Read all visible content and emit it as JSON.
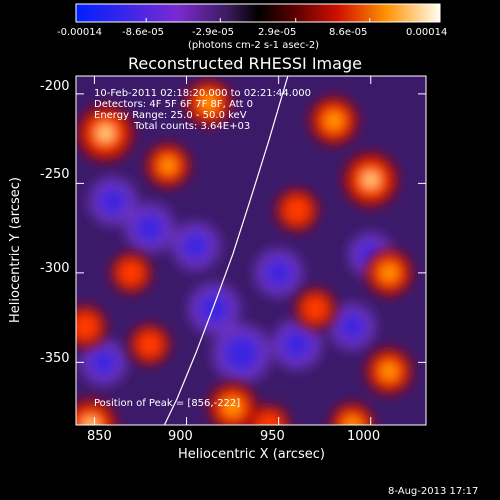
{
  "chart_data": {
    "type": "heatmap",
    "title": "Reconstructed RHESSI Image",
    "xlabel": "Heliocentric X (arcsec)",
    "ylabel": "Heliocentric Y (arcsec)",
    "xlim": [
      840,
      1030
    ],
    "ylim": [
      -385,
      -190
    ],
    "x_ticks": [
      "850",
      "900",
      "950",
      "1000"
    ],
    "y_ticks": [
      "-200",
      "-250",
      "-300",
      "-350"
    ],
    "colorbar": {
      "label": "(photons cm-2 s-1 asec-2)",
      "range": [
        -0.00014,
        0.00014
      ],
      "ticks": [
        "-0.00014",
        "-8.6e-05",
        "-2.9e-05",
        "2.9e-05",
        "8.6e-05",
        "0.00014"
      ]
    },
    "annotations": {
      "time_range": "10-Feb-2011 02:18:20.000 to 02:21:44.000",
      "detectors": "Detectors: 4F 5F 6F 7F 8F, Att 0",
      "energy_range": "Energy Range: 25.0 - 50.0 keV",
      "counts": "Total counts: 3.64E+03",
      "peak": "Position of Peak = [856,-222]"
    },
    "limb_curve": {
      "x": [
        888,
        895,
        905,
        915,
        925,
        935,
        945,
        955
      ],
      "y": [
        -385,
        -370,
        -345,
        -318,
        -290,
        -258,
        -225,
        -190
      ]
    },
    "bright_sources": [
      {
        "x": 856,
        "y": -222,
        "value": 0.00014
      },
      {
        "x": 1000,
        "y": -248,
        "value": 0.00013
      },
      {
        "x": 980,
        "y": -215,
        "value": 0.0001
      },
      {
        "x": 848,
        "y": -385,
        "value": 0.00012
      },
      {
        "x": 925,
        "y": -375,
        "value": 0.0001
      },
      {
        "x": 1010,
        "y": -300,
        "value": 9e-05
      },
      {
        "x": 912,
        "y": -205,
        "value": 9e-05
      },
      {
        "x": 890,
        "y": -240,
        "value": 8e-05
      },
      {
        "x": 1010,
        "y": -355,
        "value": 9e-05
      },
      {
        "x": 870,
        "y": -300,
        "value": 6e-05
      },
      {
        "x": 960,
        "y": -265,
        "value": 7e-05
      },
      {
        "x": 970,
        "y": -320,
        "value": 6e-05
      },
      {
        "x": 880,
        "y": -340,
        "value": 6e-05
      },
      {
        "x": 845,
        "y": -330,
        "value": 7e-05
      },
      {
        "x": 990,
        "y": -385,
        "value": 8e-05
      },
      {
        "x": 945,
        "y": -385,
        "value": 6e-05
      }
    ],
    "dark_sources": [
      {
        "x": 930,
        "y": -345,
        "value": -0.00013
      },
      {
        "x": 915,
        "y": -320,
        "value": -9e-05
      },
      {
        "x": 880,
        "y": -275,
        "value": -8e-05
      },
      {
        "x": 960,
        "y": -340,
        "value": -8e-05
      },
      {
        "x": 860,
        "y": -260,
        "value": -7e-05
      },
      {
        "x": 905,
        "y": -285,
        "value": -7e-05
      },
      {
        "x": 990,
        "y": -330,
        "value": -6e-05
      },
      {
        "x": 950,
        "y": -300,
        "value": -7e-05
      },
      {
        "x": 1000,
        "y": -290,
        "value": -5e-05
      },
      {
        "x": 855,
        "y": -350,
        "value": -6e-05
      }
    ]
  },
  "footer": {
    "date": "8-Aug-2013 17:17"
  }
}
